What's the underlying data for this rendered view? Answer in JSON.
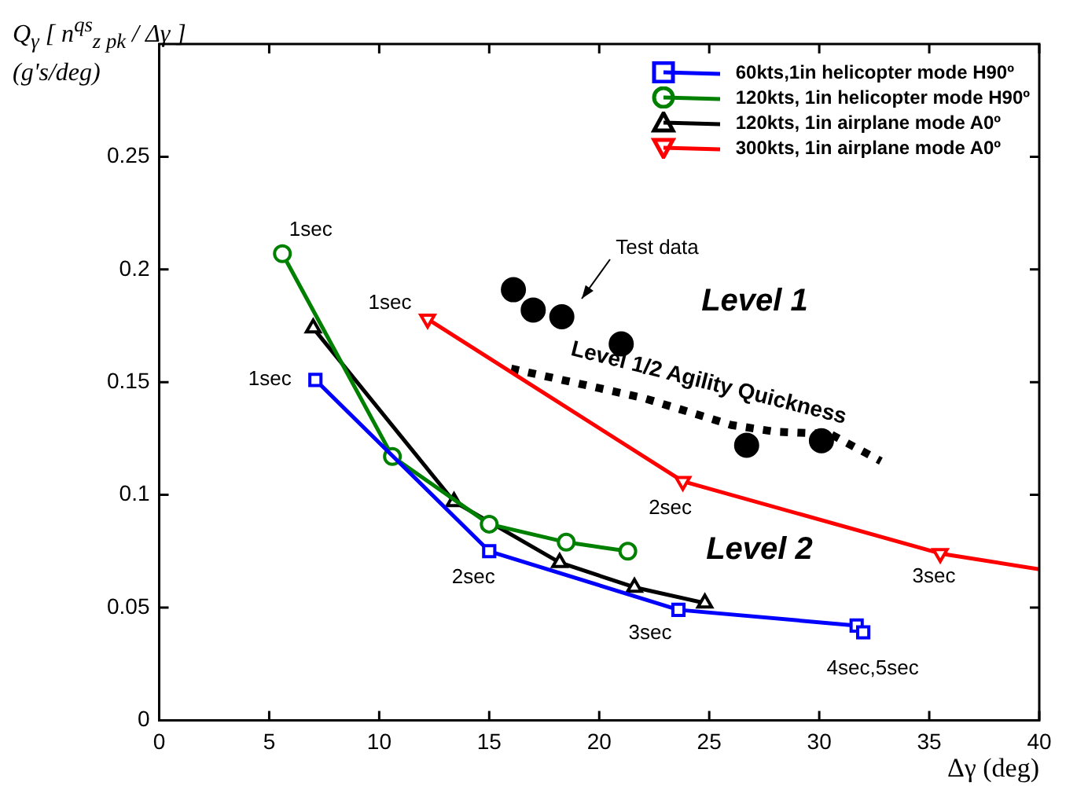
{
  "chart_data": {
    "type": "line",
    "ylabel": "Q$_{γ}$ [ n$^{qs}$$_{z pk}$ / Δγ ] (g's/deg)",
    "xlabel": "Δγ (deg)",
    "xlim": [
      0,
      40
    ],
    "xticks": [
      0,
      5,
      10,
      15,
      20,
      25,
      30,
      35,
      40
    ],
    "ylim": [
      0,
      0.3
    ],
    "yticks": [
      0,
      0.05,
      0.1,
      0.15,
      0.2,
      0.25
    ],
    "grid": false,
    "legend": "top right",
    "series": [
      {
        "name": "60kts,1in helicopter mode H90º",
        "color": "#0000ff",
        "marker": "square",
        "x": [
          7.1,
          15,
          23.6,
          31.7,
          32
        ],
        "values": [
          0.151,
          0.075,
          0.049,
          0.042,
          0.039
        ]
      },
      {
        "name": "120kts, 1in helicopter mode H90º",
        "color": "#008000",
        "marker": "circle",
        "x": [
          5.6,
          10.6,
          15,
          18.5,
          21.3
        ],
        "values": [
          0.207,
          0.117,
          0.087,
          0.079,
          0.075
        ]
      },
      {
        "name": "120kts, 1in airplane mode A0º",
        "color": "#000000",
        "marker": "triangle",
        "x": [
          7,
          13.4,
          18.2,
          21.6,
          24.8
        ],
        "values": [
          0.174,
          0.097,
          0.07,
          0.059,
          0.052
        ]
      },
      {
        "name": "300kts, 1in airplane mode A0º",
        "color": "#ff0000",
        "marker": "triangle-down",
        "x": [
          12.2,
          23.8,
          35.5,
          40
        ],
        "values": [
          0.178,
          0.106,
          0.074,
          0.067
        ]
      },
      {
        "name": "Level 1/2 Agility Quickness",
        "color": "#000000",
        "marker": "none",
        "line_style": "dotted",
        "x": [
          16,
          22,
          26,
          28,
          30.5,
          32.8
        ],
        "values": [
          0.156,
          0.143,
          0.131,
          0.128,
          0.127,
          0.115
        ]
      },
      {
        "type": "scatter",
        "color": "#000000",
        "marker": "circle",
        "x": [
          16.1,
          17,
          18.3,
          21,
          26.7,
          30.1
        ],
        "values": [
          0.191,
          0.182,
          0.179,
          0.167,
          0.122,
          0.124
        ]
      }
    ],
    "annotations": [
      {
        "text": "1sec",
        "x": 5.6,
        "y": 0.207
      },
      {
        "text": "1sec",
        "x": 7.1,
        "y": 0.151
      },
      {
        "text": "1sec",
        "x": 12.2,
        "y": 0.178
      },
      {
        "text": "2sec",
        "x": 15,
        "y": 0.075
      },
      {
        "text": "2sec",
        "x": 23.8,
        "y": 0.106
      },
      {
        "text": "3sec",
        "x": 23.6,
        "y": 0.049
      },
      {
        "text": "3sec",
        "x": 35.5,
        "y": 0.074
      },
      {
        "text": "4sec,5sec",
        "x": 32,
        "y": 0.039
      },
      "Test data",
      "Level 1",
      "Level 2"
    ]
  }
}
